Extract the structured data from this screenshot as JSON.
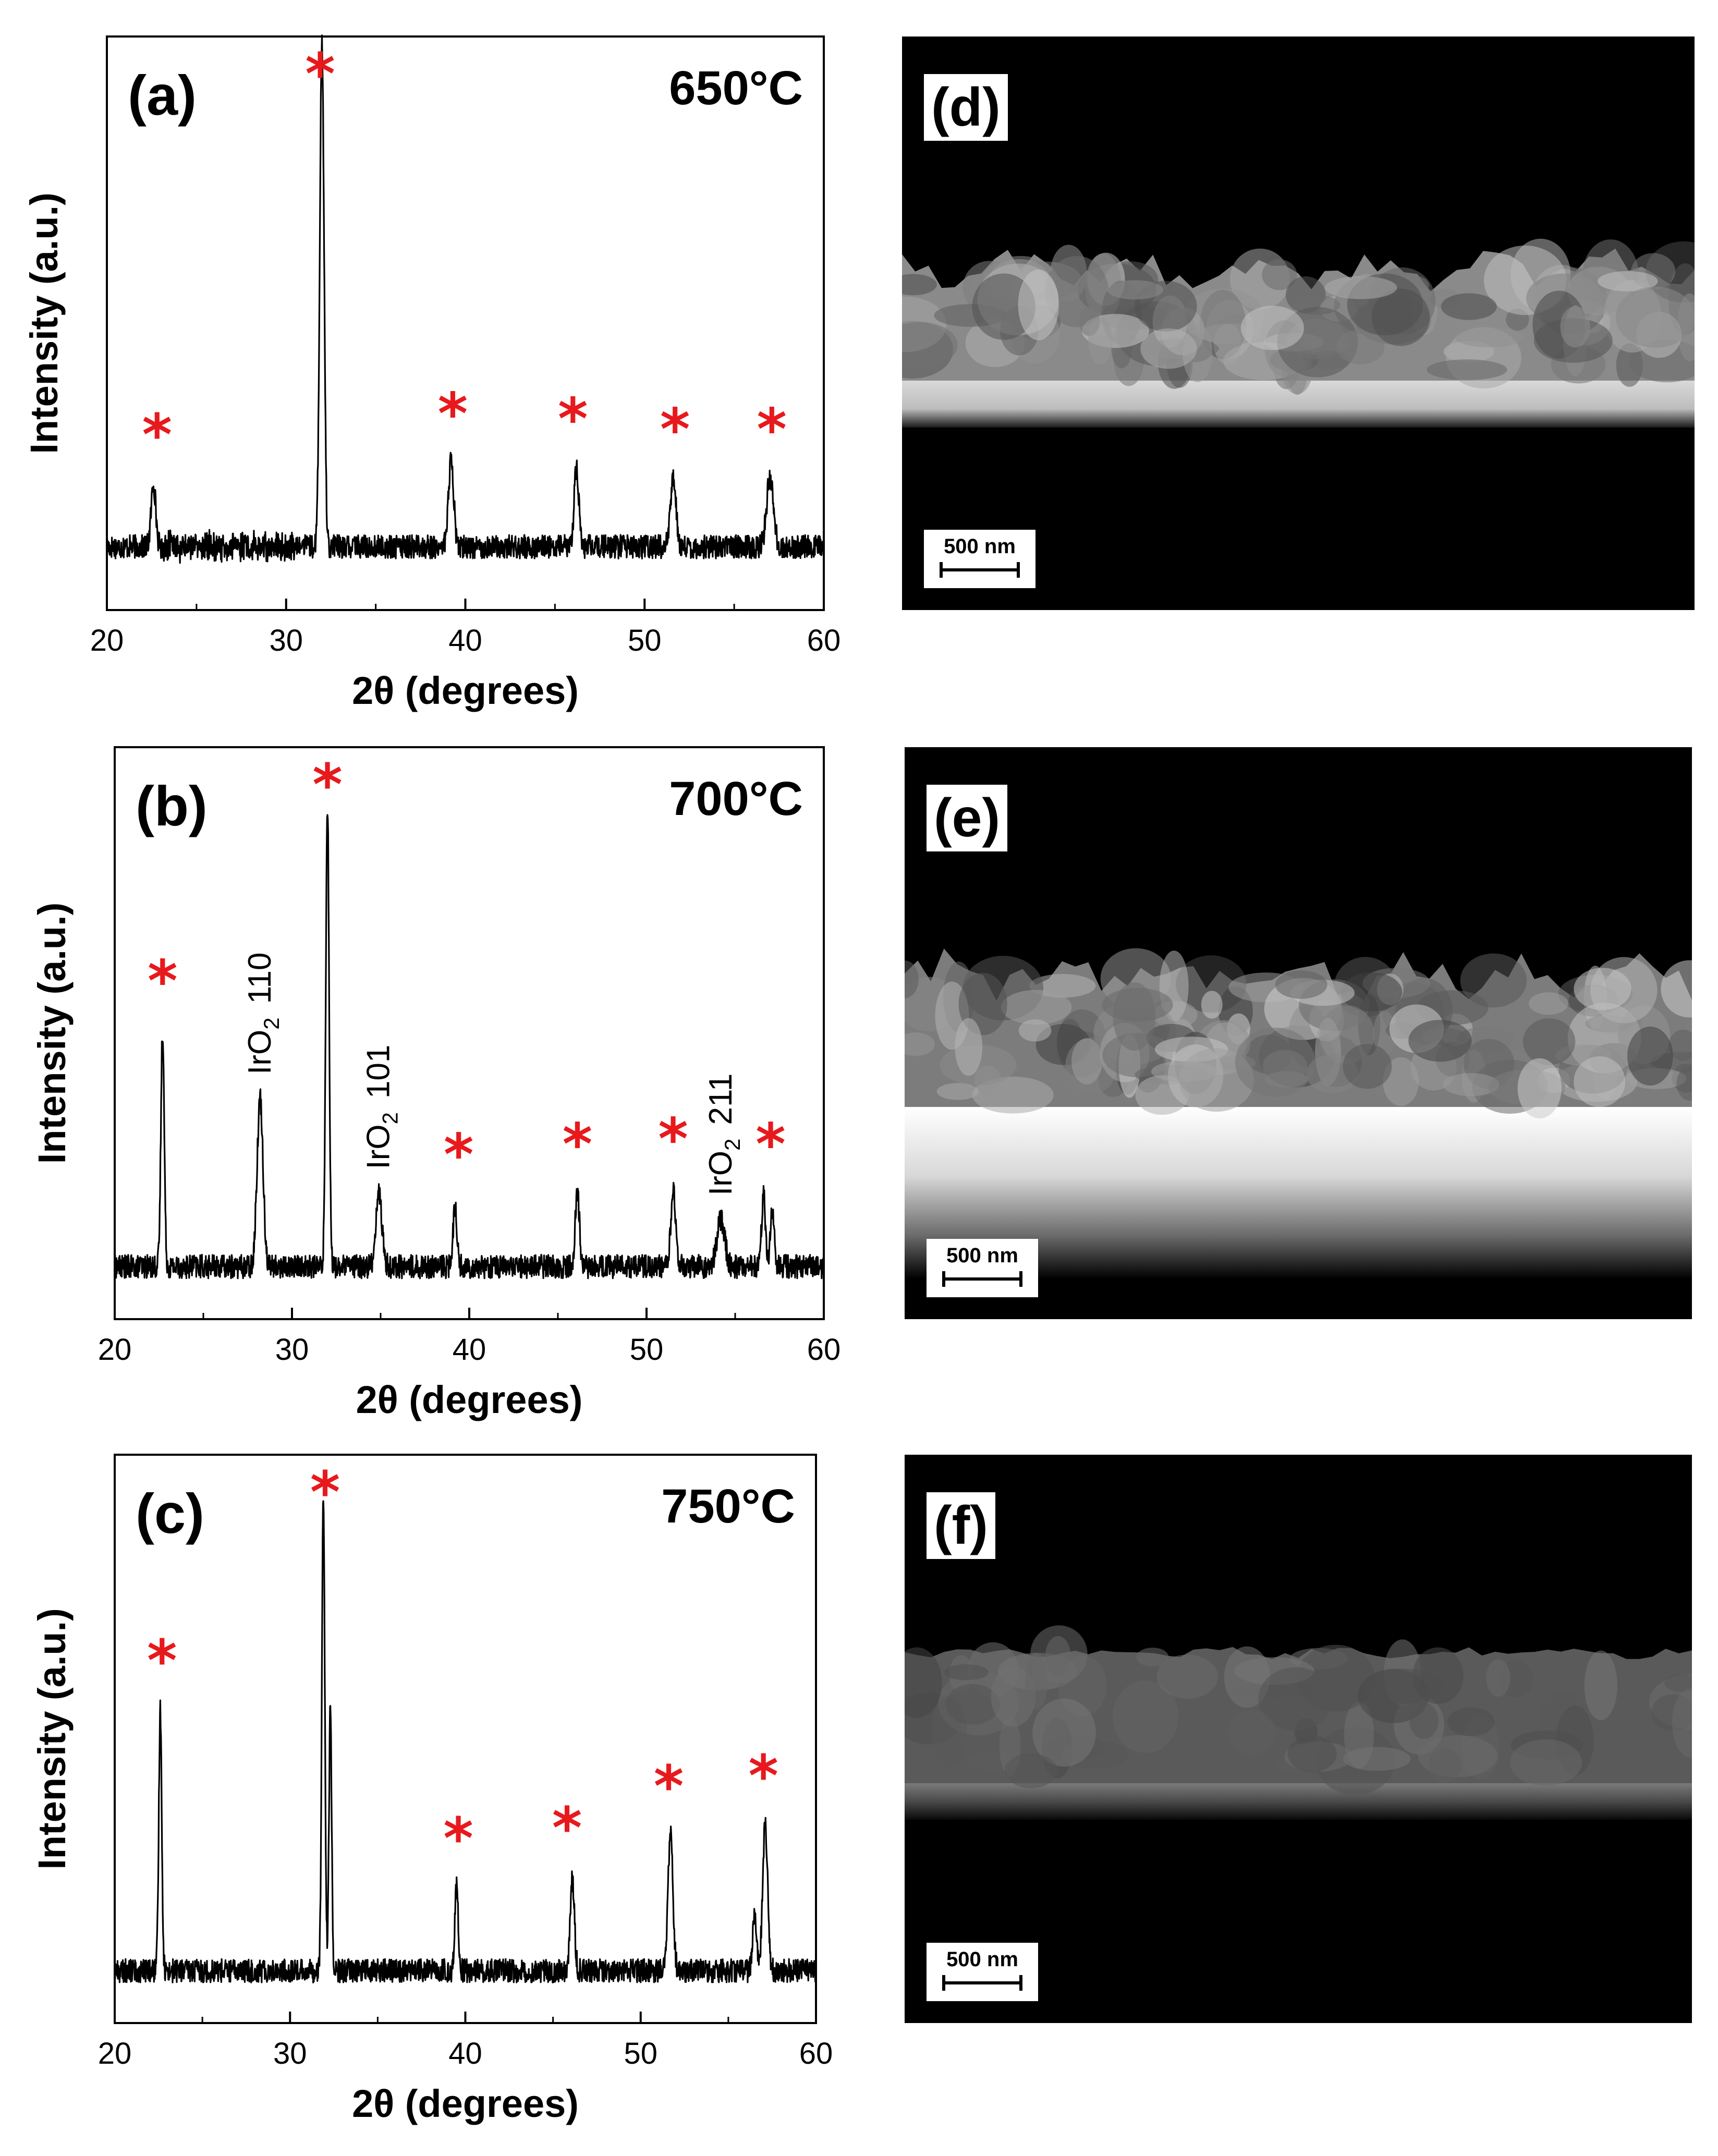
{
  "chart_data": [
    {
      "type": "line",
      "panel": "(a)",
      "temperature": "650°C",
      "xlabel": "2θ (degrees)",
      "ylabel": "Intensity (a.u.)",
      "xlim": [
        20,
        60
      ],
      "xticks": [
        20,
        30,
        40,
        50,
        60
      ],
      "baseline": 0.12,
      "peaks": [
        {
          "x": 22.6,
          "height": 0.12,
          "width": 0.3
        },
        {
          "x": 32.0,
          "height": 0.95,
          "width": 0.28
        },
        {
          "x": 39.2,
          "height": 0.16,
          "width": 0.35
        },
        {
          "x": 46.2,
          "height": 0.15,
          "width": 0.3
        },
        {
          "x": 51.6,
          "height": 0.13,
          "width": 0.35
        },
        {
          "x": 57.0,
          "height": 0.13,
          "width": 0.45
        }
      ],
      "markers": [
        {
          "x": 22.8,
          "text": "*"
        },
        {
          "x": 31.9,
          "text": "*"
        },
        {
          "x": 39.3,
          "text": "*"
        },
        {
          "x": 46.0,
          "text": "*"
        },
        {
          "x": 51.7,
          "text": "*"
        },
        {
          "x": 57.1,
          "text": "*"
        }
      ],
      "annotations": []
    },
    {
      "type": "line",
      "panel": "(b)",
      "temperature": "700°C",
      "xlabel": "2θ (degrees)",
      "ylabel": "Intensity (a.u.)",
      "xlim": [
        20,
        60
      ],
      "xticks": [
        20,
        30,
        40,
        50,
        60
      ],
      "baseline": 0.1,
      "peaks": [
        {
          "x": 22.7,
          "height": 0.45,
          "width": 0.22
        },
        {
          "x": 28.2,
          "height": 0.32,
          "width": 0.4
        },
        {
          "x": 32.0,
          "height": 0.88,
          "width": 0.22
        },
        {
          "x": 34.9,
          "height": 0.14,
          "width": 0.4
        },
        {
          "x": 39.2,
          "height": 0.12,
          "width": 0.25
        },
        {
          "x": 46.1,
          "height": 0.14,
          "width": 0.28
        },
        {
          "x": 51.5,
          "height": 0.15,
          "width": 0.3
        },
        {
          "x": 54.2,
          "height": 0.09,
          "width": 0.5
        },
        {
          "x": 56.6,
          "height": 0.14,
          "width": 0.25
        },
        {
          "x": 57.1,
          "height": 0.11,
          "width": 0.25
        }
      ],
      "markers": [
        {
          "x": 22.7,
          "text": "*"
        },
        {
          "x": 32.0,
          "text": "*"
        },
        {
          "x": 39.4,
          "text": "*"
        },
        {
          "x": 46.1,
          "text": "*"
        },
        {
          "x": 51.5,
          "text": "*"
        },
        {
          "x": 57.0,
          "text": "*"
        }
      ],
      "annotations": [
        {
          "x": 28.2,
          "label": "IrO",
          "sub": "2",
          "hkl": "110"
        },
        {
          "x": 34.9,
          "label": "IrO",
          "sub": "2",
          "hkl": "101"
        },
        {
          "x": 54.2,
          "label": "IrO",
          "sub": "2",
          "hkl": "211"
        }
      ]
    },
    {
      "type": "line",
      "panel": "(c)",
      "temperature": "750°C",
      "xlabel": "2θ (degrees)",
      "ylabel": "Intensity (a.u.)",
      "xlim": [
        20,
        60
      ],
      "xticks": [
        20,
        30,
        40,
        50,
        60
      ],
      "baseline": 0.1,
      "peaks": [
        {
          "x": 22.6,
          "height": 0.5,
          "width": 0.2
        },
        {
          "x": 31.9,
          "height": 0.9,
          "width": 0.2
        },
        {
          "x": 32.3,
          "height": 0.5,
          "width": 0.18
        },
        {
          "x": 39.5,
          "height": 0.16,
          "width": 0.22
        },
        {
          "x": 46.1,
          "height": 0.18,
          "width": 0.28
        },
        {
          "x": 51.7,
          "height": 0.26,
          "width": 0.33
        },
        {
          "x": 57.1,
          "height": 0.28,
          "width": 0.33
        },
        {
          "x": 56.5,
          "height": 0.12,
          "width": 0.25
        }
      ],
      "markers": [
        {
          "x": 22.7,
          "text": "*"
        },
        {
          "x": 32.0,
          "text": "*"
        },
        {
          "x": 39.6,
          "text": "*"
        },
        {
          "x": 45.8,
          "text": "*"
        },
        {
          "x": 51.6,
          "text": "*"
        },
        {
          "x": 57.0,
          "text": "*"
        }
      ],
      "annotations": []
    }
  ],
  "sem_images": [
    {
      "panel": "(d)",
      "scale_bar": "500 nm"
    },
    {
      "panel": "(e)",
      "scale_bar": "500 nm"
    },
    {
      "panel": "(f)",
      "scale_bar": "500 nm"
    }
  ],
  "colors": {
    "trace": "#000000",
    "marker": "#e8191c",
    "frame": "#000000"
  }
}
